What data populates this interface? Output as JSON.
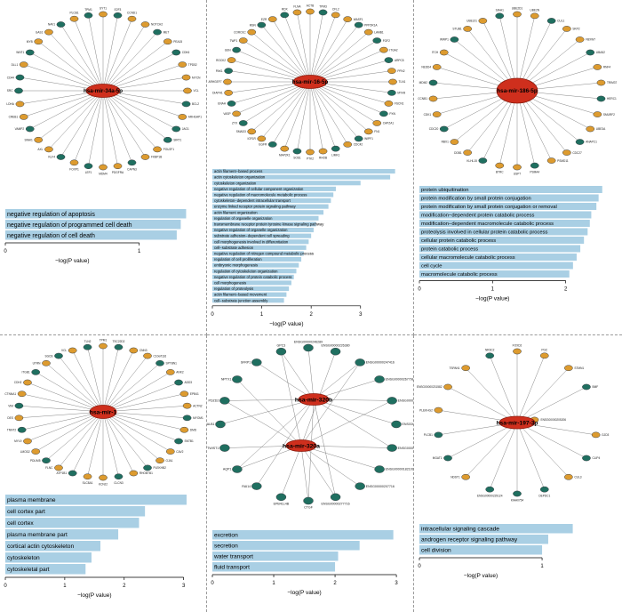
{
  "colors": {
    "node_orange": "#dd9b2f",
    "node_teal": "#1f6f60",
    "node_stroke": "#3c4146",
    "center_red": "#cf2f1d",
    "center_stroke": "#8c1a0c",
    "edge": "#777777",
    "bar_fill": "#a9cfe4",
    "divider": "#9a9a9a",
    "text": "#000000"
  },
  "networks": [
    {
      "centers": [
        "hsa-mir-34a-5p"
      ],
      "nodes": [
        [
          "SYT1",
          "o"
        ],
        [
          "E2F3",
          "t"
        ],
        [
          "CCND1",
          "o"
        ],
        [
          "NOTCH2",
          "o"
        ],
        [
          "MET",
          "t"
        ],
        [
          "PEA15",
          "o"
        ],
        [
          "CDK6",
          "t"
        ],
        [
          "TPD52",
          "o"
        ],
        [
          "MYCN",
          "o"
        ],
        [
          "VCL",
          "o"
        ],
        [
          "BCL2",
          "t"
        ],
        [
          "ARHGAP1",
          "o"
        ],
        [
          "JAG1",
          "t"
        ],
        [
          "SIRT1",
          "t"
        ],
        [
          "POU2F1",
          "o"
        ],
        [
          "FKBP1B",
          "o"
        ],
        [
          "CAPN3",
          "t"
        ],
        [
          "PDGFRA",
          "o"
        ],
        [
          "MDM4",
          "o"
        ],
        [
          "LEF1",
          "t"
        ],
        [
          "FOXP1",
          "o"
        ],
        [
          "KLF4",
          "t"
        ],
        [
          "AXL",
          "o"
        ],
        [
          "SNAI1",
          "o"
        ],
        [
          "VAMP2",
          "t"
        ],
        [
          "CREB1",
          "o"
        ],
        [
          "LDHA",
          "o"
        ],
        [
          "SRC",
          "t"
        ],
        [
          "CD44",
          "t"
        ],
        [
          "DLL1",
          "o"
        ],
        [
          "WNT1",
          "t"
        ],
        [
          "MYB",
          "o"
        ],
        [
          "GAS1",
          "o"
        ],
        [
          "NAV1",
          "t"
        ],
        [
          "PLCB1",
          "o"
        ],
        [
          "TPM1",
          "t"
        ]
      ]
    },
    {
      "centers": [
        "hsa-mir-16-5p"
      ],
      "nodes": [
        [
          "ACTB",
          "o"
        ],
        [
          "TPM3",
          "t"
        ],
        [
          "CFL2",
          "o"
        ],
        [
          "WASF1",
          "o"
        ],
        [
          "PPP2R1A",
          "t"
        ],
        [
          "LAMB1",
          "o"
        ],
        [
          "FGF2",
          "t"
        ],
        [
          "ITGA2",
          "o"
        ],
        [
          "ARPC5",
          "t"
        ],
        [
          "PFN2",
          "o"
        ],
        [
          "TLN1",
          "o"
        ],
        [
          "MYH9",
          "t"
        ],
        [
          "FSCN1",
          "o"
        ],
        [
          "PXN",
          "t"
        ],
        [
          "CAPZA1",
          "o"
        ],
        [
          "FN1",
          "o"
        ],
        [
          "WIPF1",
          "t"
        ],
        [
          "CDC42",
          "o"
        ],
        [
          "LIMK1",
          "t"
        ],
        [
          "RHOB",
          "o"
        ],
        [
          "PTK2",
          "o"
        ],
        [
          "SOS1",
          "t"
        ],
        [
          "MAP2K1",
          "o"
        ],
        [
          "EGFR",
          "t"
        ],
        [
          "IGF1R",
          "o"
        ],
        [
          "SMAD3",
          "o"
        ],
        [
          "ZYX",
          "t"
        ],
        [
          "VASP",
          "o"
        ],
        [
          "ENAH",
          "t"
        ],
        [
          "DIAPH1",
          "o"
        ],
        [
          "ARHGEF7",
          "o"
        ],
        [
          "PAK1",
          "t"
        ],
        [
          "ROCK2",
          "o"
        ],
        [
          "GSN",
          "t"
        ],
        [
          "TWF1",
          "o"
        ],
        [
          "CORO1C",
          "o"
        ],
        [
          "MSN",
          "t"
        ],
        [
          "EZR",
          "o"
        ],
        [
          "RDX",
          "t"
        ],
        [
          "FLNA",
          "o"
        ]
      ]
    },
    {
      "centers": [
        "hsa-mir-186-5p"
      ],
      "nodes": [
        [
          "UBE2D1",
          "o"
        ],
        [
          "UBE2N",
          "o"
        ],
        [
          "CUL1",
          "t"
        ],
        [
          "SKP2",
          "o"
        ],
        [
          "FBXW7",
          "o"
        ],
        [
          "UBA52",
          "t"
        ],
        [
          "RNF4",
          "o"
        ],
        [
          "TRIM37",
          "o"
        ],
        [
          "HERC1",
          "t"
        ],
        [
          "SMURF2",
          "o"
        ],
        [
          "UBE3A",
          "o"
        ],
        [
          "ANAPC1",
          "t"
        ],
        [
          "CDC27",
          "o"
        ],
        [
          "PSMD11",
          "o"
        ],
        [
          "PSMA4",
          "t"
        ],
        [
          "USP7",
          "o"
        ],
        [
          "BTRC",
          "o"
        ],
        [
          "KLHL15",
          "t"
        ],
        [
          "DDB1",
          "o"
        ],
        [
          "RBX1",
          "o"
        ],
        [
          "CDC20",
          "t"
        ],
        [
          "CDK1",
          "o"
        ],
        [
          "CCNB1",
          "o"
        ],
        [
          "MDM2",
          "t"
        ],
        [
          "NEDD4",
          "o"
        ],
        [
          "ITCH",
          "o"
        ],
        [
          "WWP1",
          "t"
        ],
        [
          "STUB1",
          "o"
        ],
        [
          "UBE2J1",
          "o"
        ],
        [
          "SIAH1",
          "t"
        ]
      ]
    },
    {
      "centers": [
        "hsa-mir-1"
      ],
      "nodes": [
        [
          "TPM1",
          "o"
        ],
        [
          "TSC22D2",
          "t"
        ],
        [
          "CNN3",
          "o"
        ],
        [
          "C10orf116",
          "o"
        ],
        [
          "SPTBN1",
          "t"
        ],
        [
          "ANK2",
          "o"
        ],
        [
          "ADD3",
          "t"
        ],
        [
          "EPB41",
          "o"
        ],
        [
          "ACTN2",
          "o"
        ],
        [
          "MYOM1",
          "t"
        ],
        [
          "DMD",
          "o"
        ],
        [
          "SNTB1",
          "t"
        ],
        [
          "CAV2",
          "o"
        ],
        [
          "GJA1",
          "o"
        ],
        [
          "PLEKHB2",
          "t"
        ],
        [
          "RHOBTB1",
          "o"
        ],
        [
          "CLCN3",
          "t"
        ],
        [
          "KCNJ2",
          "o"
        ],
        [
          "SLC8A1",
          "o"
        ],
        [
          "ATP1B1",
          "t"
        ],
        [
          "FLNC",
          "o"
        ],
        [
          "PDLIM5",
          "t"
        ],
        [
          "LMOD2",
          "o"
        ],
        [
          "MYL9",
          "o"
        ],
        [
          "TNNT2",
          "t"
        ],
        [
          "DES",
          "o"
        ],
        [
          "VIM",
          "t"
        ],
        [
          "CTNNA1",
          "o"
        ],
        [
          "CDH2",
          "o"
        ],
        [
          "ITGB1",
          "t"
        ],
        [
          "UTRN",
          "o"
        ],
        [
          "SGCB",
          "t"
        ],
        [
          "VCL",
          "o"
        ],
        [
          "TLN2",
          "t"
        ]
      ]
    },
    {
      "centers": [
        "hsa-mir-320b",
        "hsa-mir-320a"
      ],
      "nodes": [
        [
          "ENSG00000246289",
          "t",
          [
            0
          ]
        ],
        [
          "ENSG00000226380",
          "t",
          [
            1
          ]
        ],
        [
          "ENSG00000247416",
          "t",
          [
            0,
            1
          ]
        ],
        [
          "ENSG00000267798",
          "t",
          [
            0
          ]
        ],
        [
          "ENSG00000247708",
          "t",
          [
            0,
            1
          ]
        ],
        [
          "ENSG00000175971",
          "t",
          [
            0
          ]
        ],
        [
          "ENSG00000204934",
          "t",
          [
            0,
            1
          ]
        ],
        [
          "ENSG00000182109",
          "t",
          [
            1
          ]
        ],
        [
          "ENSG00000207716",
          "t",
          [
            1
          ]
        ],
        [
          "ENSG00000277716",
          "t",
          [
            0,
            1
          ]
        ],
        [
          "CTGF",
          "t",
          [
            0,
            1
          ]
        ],
        [
          "EPB41L4B",
          "t",
          [
            1
          ]
        ],
        [
          "RAI14",
          "t",
          [
            0
          ]
        ],
        [
          "AQP1",
          "t",
          [
            0,
            1
          ]
        ],
        [
          "TWIST1",
          "t",
          [
            1
          ]
        ],
        [
          "CALB1",
          "t",
          [
            0
          ]
        ],
        [
          "PDZD2",
          "t",
          [
            0,
            1
          ]
        ],
        [
          "NPTX1",
          "t",
          [
            1
          ]
        ],
        [
          "SFRP1",
          "t",
          [
            0
          ]
        ],
        [
          "GPC3",
          "t",
          [
            0,
            1
          ]
        ]
      ]
    },
    {
      "centers": [
        "hsa-mir-197-3p"
      ],
      "nodes": [
        [
          "FOXD2",
          "o"
        ],
        [
          "PGC",
          "o"
        ],
        [
          "STMN1",
          "o"
        ],
        [
          "BMF",
          "t"
        ],
        [
          "ENSG00000205206",
          "o",
          null,
          0.22
        ],
        [
          "GJD3",
          "o"
        ],
        [
          "CLIP4",
          "t"
        ],
        [
          "CUL3",
          "o"
        ],
        [
          "DEPDC1",
          "t"
        ],
        [
          "KIAA0754",
          "t"
        ],
        [
          "ENSG00000229124",
          "t"
        ],
        [
          "NDST1",
          "o"
        ],
        [
          "MGAT1",
          "t"
        ],
        [
          "PLCB1",
          "t"
        ],
        [
          "PLEKHG2",
          "o"
        ],
        [
          "ENSG00000231582",
          "o"
        ],
        [
          "TSPAN1",
          "o"
        ],
        [
          "NR3C2",
          "t"
        ]
      ]
    }
  ],
  "chart_data": [
    {
      "type": "bar",
      "categories": [
        "negative regulation of apoptosis",
        "negative regulation of programmed cell death",
        "negative regulation of cell death"
      ],
      "values": [
        1.35,
        1.31,
        1.28
      ],
      "ticks": [
        0,
        1
      ],
      "xmax": 1.42,
      "xlabel": "−log(P value)"
    },
    {
      "type": "bar",
      "categories": [
        "actin filament−based process",
        "actin cytoskeleton organization",
        "cytoskeleton organization",
        "negative regulation of cellular component organization",
        "negative regulation of macromolecule metabolic process",
        "cytoskeleton−dependent intracellular transport",
        "enzyme linked receptor protein signaling pathway",
        "actin filament organization",
        "regulation of organelle organization",
        "transmembrane receptor protein tyrosine kinase signaling pathway",
        "negative regulation of organelle organization",
        "substrate adhesion−dependent cell spreading",
        "cell morphogenesis involved in differentiation",
        "cell−substrate adhesion",
        "negative regulation of nitrogen compound metabolic process",
        "regulation of cell proliferation",
        "embryonic morphogenesis",
        "regulation of cytoskeleton organization",
        "negative regulation of protein catabolic process",
        "cell morphogenesis",
        "regulation of proteolysis",
        "actin filament−based movement",
        "cell−substrate junction assembly"
      ],
      "values": [
        3.7,
        3.6,
        3.0,
        2.5,
        2.45,
        2.4,
        2.35,
        2.25,
        2.15,
        2.1,
        2.05,
        2.0,
        1.95,
        1.9,
        1.85,
        1.8,
        1.75,
        1.7,
        1.65,
        1.6,
        1.55,
        1.5,
        1.45
      ],
      "ticks": [
        0,
        1,
        2,
        3
      ],
      "xmax": 3.85,
      "xlabel": "−log(P value)"
    },
    {
      "type": "bar",
      "categories": [
        "protein ubiquitination",
        "protein modification by small protein conjugation",
        "protein modification by small protein conjugation or removal",
        "modification−dependent protein catabolic process",
        "modification−dependent macromolecule catabolic process",
        "proteolysis involved in cellular protein catabolic process",
        "cellular protein catabolic process",
        "protein catabolic process",
        "cellular macromolecule catabolic process",
        "cell cycle",
        "macromolecule catabolic process"
      ],
      "values": [
        2.5,
        2.45,
        2.42,
        2.35,
        2.33,
        2.3,
        2.25,
        2.2,
        2.15,
        2.1,
        2.05
      ],
      "ticks": [
        0,
        1,
        2
      ],
      "xmax": 2.6,
      "xlabel": "−log(P value)"
    },
    {
      "type": "bar",
      "categories": [
        "plasma membrane",
        "cell cortex part",
        "cell cortex",
        "plasma membrane part",
        "cortical actin cytoskeleton",
        "cytoskeleton",
        "cytoskeletal part"
      ],
      "values": [
        3.05,
        2.35,
        2.25,
        1.9,
        1.6,
        1.45,
        1.35
      ],
      "ticks": [
        0,
        1,
        2,
        3
      ],
      "xmax": 3.2,
      "xlabel": "−log(P value)"
    },
    {
      "type": "bar",
      "categories": [
        "excretion",
        "secretion",
        "water transport",
        "fluid transport"
      ],
      "values": [
        2.95,
        2.4,
        2.05,
        2.0
      ],
      "ticks": [
        0,
        1,
        2,
        3
      ],
      "xmax": 3.1,
      "xlabel": "−log(P value)"
    },
    {
      "type": "bar",
      "categories": [
        "intracellular signaling cascade",
        "androgen receptor signaling pathway",
        "cell division"
      ],
      "values": [
        1.25,
        1.05,
        1.0
      ],
      "ticks": [
        0,
        1
      ],
      "xmax": 1.55,
      "xlabel": "−log(P value)"
    }
  ]
}
